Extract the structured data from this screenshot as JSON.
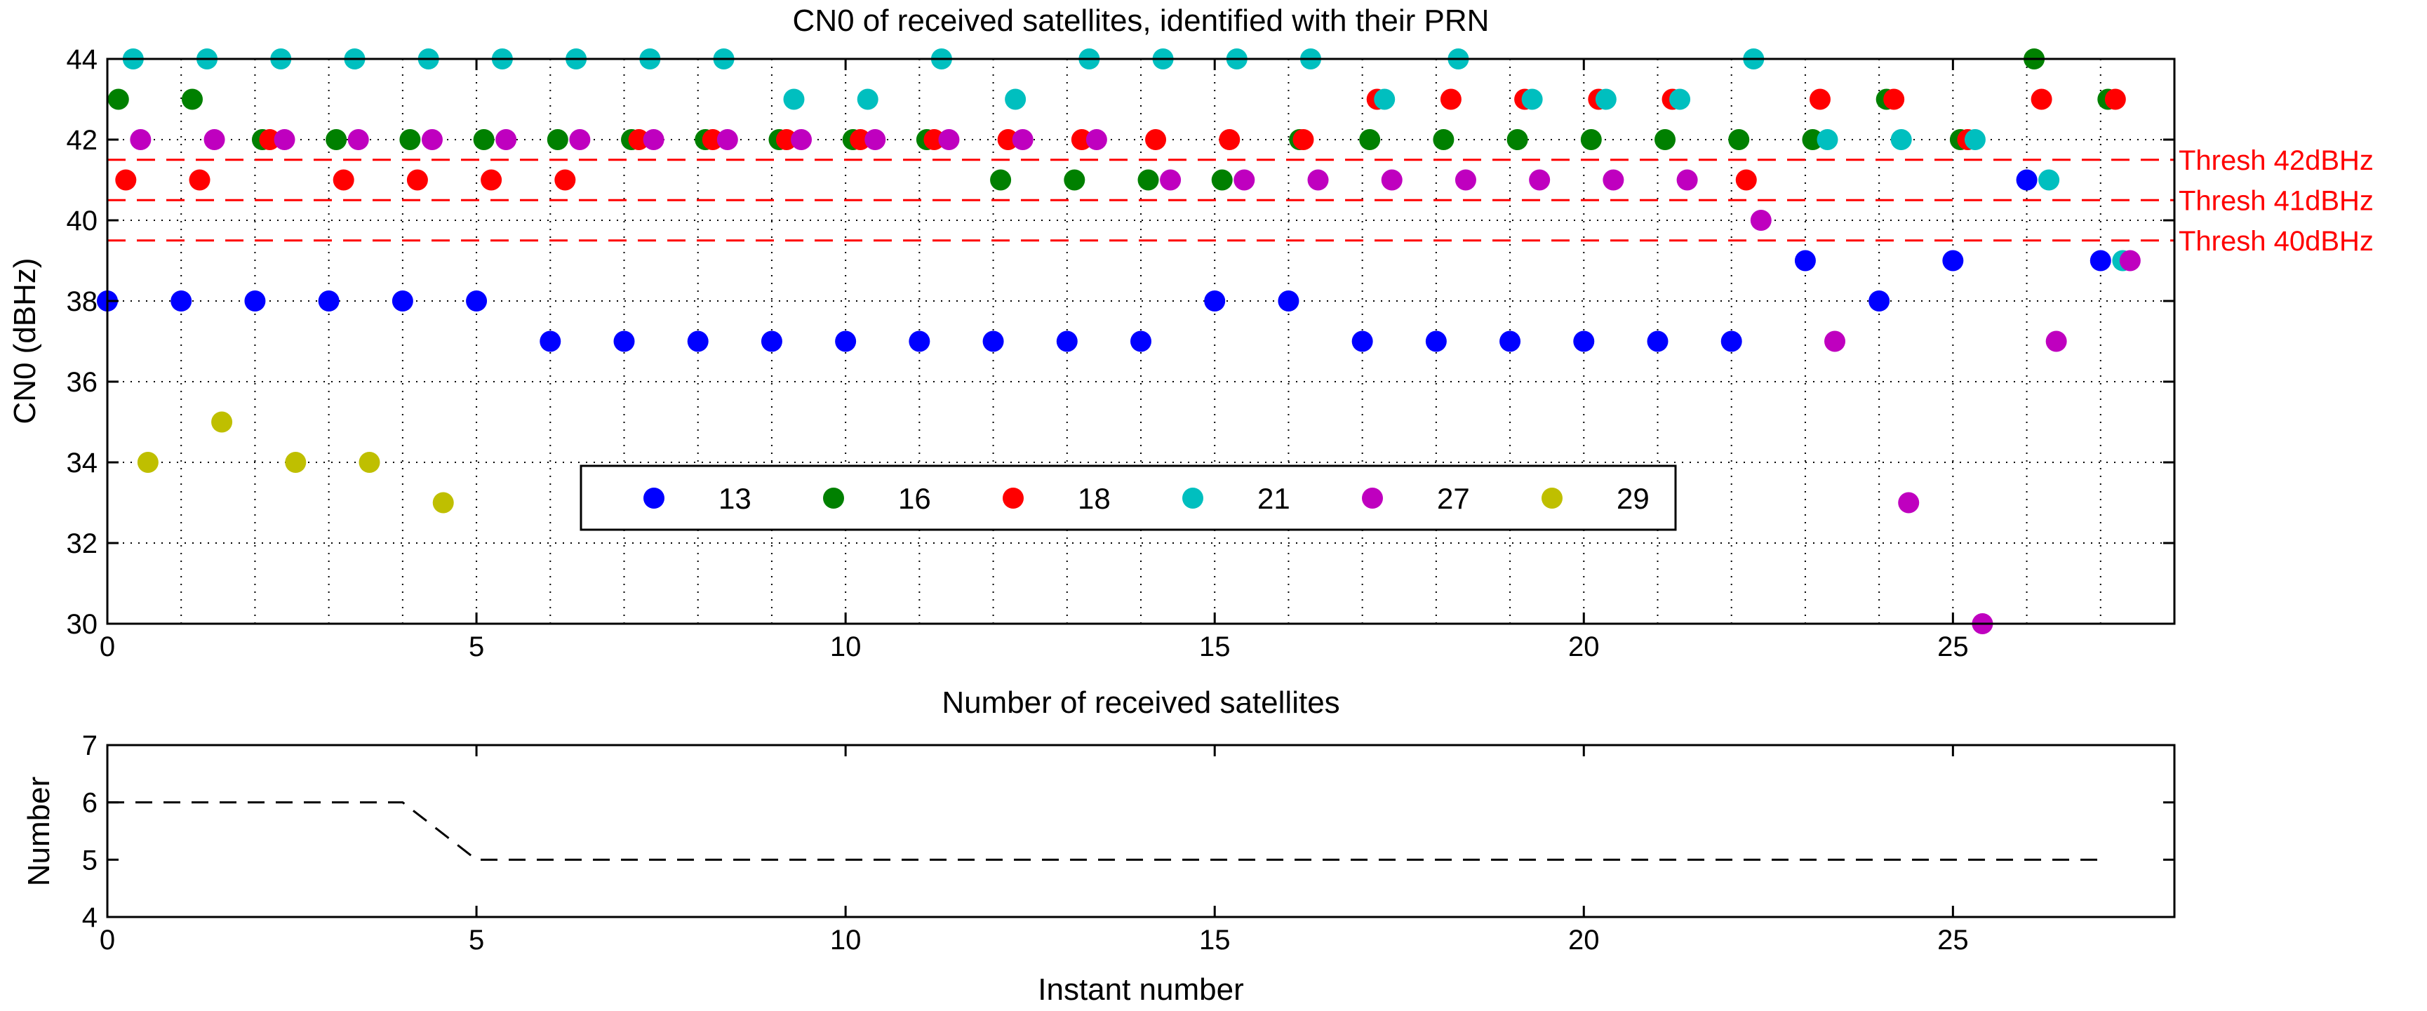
{
  "chart_data": [
    {
      "type": "scatter",
      "title": "CN0 of received satellites, identified with their PRN",
      "xlabel": "Number of received satellites",
      "ylabel": "CN0 (dBHz)",
      "xlim": [
        0,
        28
      ],
      "ylim": [
        30,
        44
      ],
      "xticks": [
        0,
        5,
        10,
        15,
        20,
        25
      ],
      "yticks": [
        30,
        32,
        34,
        36,
        38,
        40,
        42,
        44
      ],
      "grid": true,
      "legend_position": "lower-center",
      "series": [
        {
          "name": "13",
          "color": "#0000ff",
          "points": [
            [
              0,
              38
            ],
            [
              1,
              38
            ],
            [
              2,
              38
            ],
            [
              3,
              38
            ],
            [
              4,
              38
            ],
            [
              5,
              38
            ],
            [
              6,
              37
            ],
            [
              7,
              37
            ],
            [
              8,
              37
            ],
            [
              9,
              37
            ],
            [
              10,
              37
            ],
            [
              11,
              37
            ],
            [
              12,
              37
            ],
            [
              13,
              37
            ],
            [
              14,
              37
            ],
            [
              15,
              38
            ],
            [
              16,
              38
            ],
            [
              17,
              37
            ],
            [
              18,
              37
            ],
            [
              19,
              37
            ],
            [
              20,
              37
            ],
            [
              21,
              37
            ],
            [
              22,
              37
            ],
            [
              23,
              39
            ],
            [
              24,
              38
            ],
            [
              25,
              39
            ],
            [
              26,
              41
            ],
            [
              27,
              39
            ]
          ]
        },
        {
          "name": "16",
          "color": "#008000",
          "points": [
            [
              0.15,
              43
            ],
            [
              1.15,
              43
            ],
            [
              2.1,
              42
            ],
            [
              3.1,
              42
            ],
            [
              4.1,
              42
            ],
            [
              5.1,
              42
            ],
            [
              6.1,
              42
            ],
            [
              7.1,
              42
            ],
            [
              8.1,
              42
            ],
            [
              9.1,
              42
            ],
            [
              10.1,
              42
            ],
            [
              11.1,
              42
            ],
            [
              12.1,
              41
            ],
            [
              13.1,
              41
            ],
            [
              14.1,
              41
            ],
            [
              15.1,
              41
            ],
            [
              16.15,
              42
            ],
            [
              17.1,
              42
            ],
            [
              18.1,
              42
            ],
            [
              19.1,
              42
            ],
            [
              20.1,
              42
            ],
            [
              21.1,
              42
            ],
            [
              22.1,
              42
            ],
            [
              23.1,
              42
            ],
            [
              24.1,
              43
            ],
            [
              25.1,
              42
            ],
            [
              26.1,
              44
            ],
            [
              27.1,
              43
            ]
          ]
        },
        {
          "name": "18",
          "color": "#ff0000",
          "points": [
            [
              0.25,
              41
            ],
            [
              1.25,
              41
            ],
            [
              2.2,
              42
            ],
            [
              3.2,
              41
            ],
            [
              4.2,
              41
            ],
            [
              5.2,
              41
            ],
            [
              6.2,
              41
            ],
            [
              7.2,
              42
            ],
            [
              8.2,
              42
            ],
            [
              9.2,
              42
            ],
            [
              10.2,
              42
            ],
            [
              11.2,
              42
            ],
            [
              12.2,
              42
            ],
            [
              13.2,
              42
            ],
            [
              14.2,
              42
            ],
            [
              15.2,
              42
            ],
            [
              16.2,
              42
            ],
            [
              17.2,
              43
            ],
            [
              18.2,
              43
            ],
            [
              19.2,
              43
            ],
            [
              20.2,
              43
            ],
            [
              21.2,
              43
            ],
            [
              22.2,
              41
            ],
            [
              23.2,
              43
            ],
            [
              24.2,
              43
            ],
            [
              25.2,
              42
            ],
            [
              26.2,
              43
            ],
            [
              27.2,
              43
            ]
          ]
        },
        {
          "name": "21",
          "color": "#00bfbf",
          "points": [
            [
              0.35,
              44
            ],
            [
              1.35,
              44
            ],
            [
              2.35,
              44
            ],
            [
              3.35,
              44
            ],
            [
              4.35,
              44
            ],
            [
              5.35,
              44
            ],
            [
              6.35,
              44
            ],
            [
              7.35,
              44
            ],
            [
              8.35,
              44
            ],
            [
              9.3,
              43
            ],
            [
              10.3,
              43
            ],
            [
              11.3,
              44
            ],
            [
              12.3,
              43
            ],
            [
              13.3,
              44
            ],
            [
              14.3,
              44
            ],
            [
              15.3,
              44
            ],
            [
              16.3,
              44
            ],
            [
              17.3,
              43
            ],
            [
              18.3,
              44
            ],
            [
              19.3,
              43
            ],
            [
              20.3,
              43
            ],
            [
              21.3,
              43
            ],
            [
              22.3,
              44
            ],
            [
              23.3,
              42
            ],
            [
              24.3,
              42
            ],
            [
              25.3,
              42
            ],
            [
              26.3,
              41
            ],
            [
              27.3,
              39
            ]
          ]
        },
        {
          "name": "27",
          "color": "#bf00bf",
          "points": [
            [
              0.45,
              42
            ],
            [
              1.45,
              42
            ],
            [
              2.4,
              42
            ],
            [
              3.4,
              42
            ],
            [
              4.4,
              42
            ],
            [
              5.4,
              42
            ],
            [
              6.4,
              42
            ],
            [
              7.4,
              42
            ],
            [
              8.4,
              42
            ],
            [
              9.4,
              42
            ],
            [
              10.4,
              42
            ],
            [
              11.4,
              42
            ],
            [
              12.4,
              42
            ],
            [
              13.4,
              42
            ],
            [
              14.4,
              41
            ],
            [
              15.4,
              41
            ],
            [
              16.4,
              41
            ],
            [
              17.4,
              41
            ],
            [
              18.4,
              41
            ],
            [
              19.4,
              41
            ],
            [
              20.4,
              41
            ],
            [
              21.4,
              41
            ],
            [
              22.4,
              40
            ],
            [
              23.4,
              37
            ],
            [
              24.4,
              33
            ],
            [
              25.4,
              30
            ],
            [
              26.4,
              37
            ],
            [
              27.4,
              39
            ]
          ]
        },
        {
          "name": "29",
          "color": "#bfbf00",
          "points": [
            [
              0.55,
              34
            ],
            [
              1.55,
              35
            ],
            [
              2.55,
              34
            ],
            [
              3.55,
              34
            ],
            [
              4.55,
              33
            ]
          ]
        }
      ],
      "thresholds": [
        {
          "value": 41.5,
          "label": "Thresh 42dBHz"
        },
        {
          "value": 40.5,
          "label": "Thresh 41dBHz"
        },
        {
          "value": 39.5,
          "label": "Thresh 40dBHz"
        }
      ]
    },
    {
      "type": "line",
      "title": "",
      "xlabel": "Instant number",
      "ylabel": "Number",
      "xlim": [
        0,
        28
      ],
      "ylim": [
        4,
        7
      ],
      "xticks": [
        0,
        5,
        10,
        15,
        20,
        25
      ],
      "yticks": [
        4,
        5,
        6,
        7
      ],
      "grid": false,
      "series": [
        {
          "x": [
            0,
            1,
            2,
            3,
            4,
            5,
            6,
            7,
            8,
            9,
            10,
            11,
            12,
            13,
            14,
            15,
            16,
            17,
            18,
            19,
            20,
            21,
            22,
            23,
            24,
            25,
            26,
            27
          ],
          "values": [
            6,
            6,
            6,
            6,
            6,
            5,
            5,
            5,
            5,
            5,
            5,
            5,
            5,
            5,
            5,
            5,
            5,
            5,
            5,
            5,
            5,
            5,
            5,
            5,
            5,
            5,
            5,
            5
          ]
        }
      ]
    }
  ]
}
